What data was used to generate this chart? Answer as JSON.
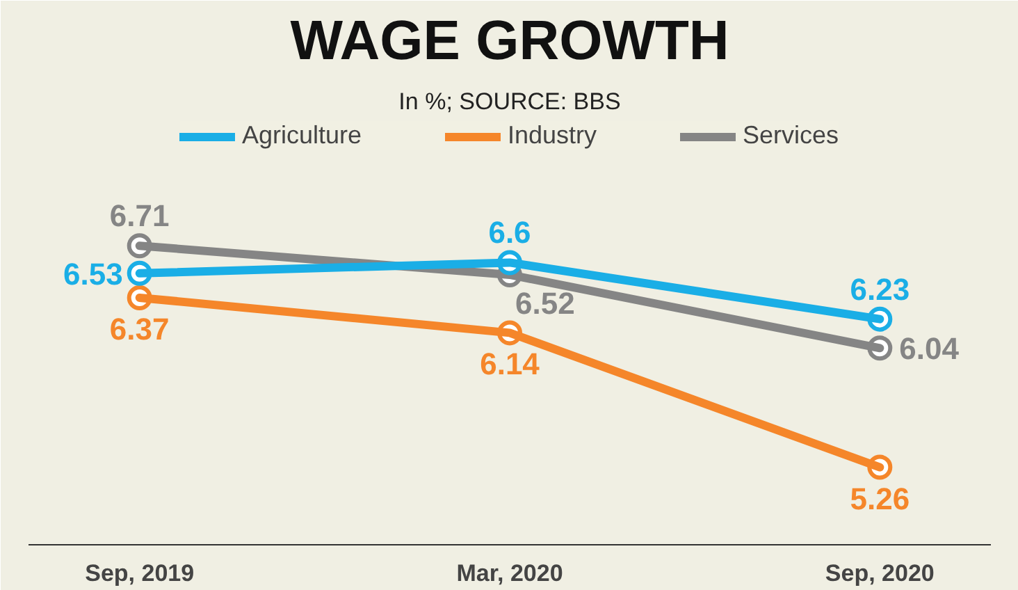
{
  "chart_data": {
    "type": "line",
    "title": "WAGE GROWTH",
    "subtitle": "In %; SOURCE: BBS",
    "categories": [
      "Sep, 2019",
      "Mar, 2020",
      "Sep, 2020"
    ],
    "series": [
      {
        "name": "Agriculture",
        "color": "#1aaee6",
        "values": [
          6.53,
          6.6,
          6.23
        ]
      },
      {
        "name": "Industry",
        "color": "#f5862a",
        "values": [
          6.37,
          6.14,
          5.26
        ]
      },
      {
        "name": "Services",
        "color": "#858585",
        "values": [
          6.71,
          6.52,
          6.04
        ]
      }
    ],
    "data_labels": true,
    "legend": "top",
    "marker": "circle",
    "line_style": "solid",
    "grid": false
  }
}
